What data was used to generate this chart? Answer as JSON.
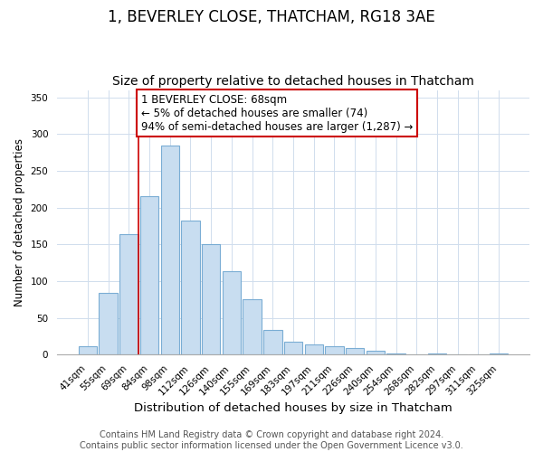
{
  "title": "1, BEVERLEY CLOSE, THATCHAM, RG18 3AE",
  "subtitle": "Size of property relative to detached houses in Thatcham",
  "xlabel": "Distribution of detached houses by size in Thatcham",
  "ylabel": "Number of detached properties",
  "bar_labels": [
    "41sqm",
    "55sqm",
    "69sqm",
    "84sqm",
    "98sqm",
    "112sqm",
    "126sqm",
    "140sqm",
    "155sqm",
    "169sqm",
    "183sqm",
    "197sqm",
    "211sqm",
    "226sqm",
    "240sqm",
    "254sqm",
    "268sqm",
    "282sqm",
    "297sqm",
    "311sqm",
    "325sqm"
  ],
  "bar_values": [
    11,
    84,
    164,
    216,
    285,
    182,
    150,
    113,
    75,
    34,
    18,
    14,
    12,
    9,
    5,
    2,
    0,
    2,
    1,
    0,
    2
  ],
  "bar_color": "#c8ddf0",
  "bar_edge_color": "#7aadd4",
  "ylim": [
    0,
    360
  ],
  "yticks": [
    0,
    50,
    100,
    150,
    200,
    250,
    300,
    350
  ],
  "vline_x_index": 2,
  "vline_color": "#cc0000",
  "annotation_line1": "1 BEVERLEY CLOSE: 68sqm",
  "annotation_line2": "← 5% of detached houses are smaller (74)",
  "annotation_line3": "94% of semi-detached houses are larger (1,287) →",
  "annotation_box_color": "#ffffff",
  "annotation_box_edge": "#cc0000",
  "footer1": "Contains HM Land Registry data © Crown copyright and database right 2024.",
  "footer2": "Contains public sector information licensed under the Open Government Licence v3.0.",
  "title_fontsize": 12,
  "subtitle_fontsize": 10,
  "xlabel_fontsize": 9.5,
  "ylabel_fontsize": 8.5,
  "tick_fontsize": 7.5,
  "footer_fontsize": 7,
  "annotation_fontsize": 8.5,
  "grid_color": "#d0dded"
}
